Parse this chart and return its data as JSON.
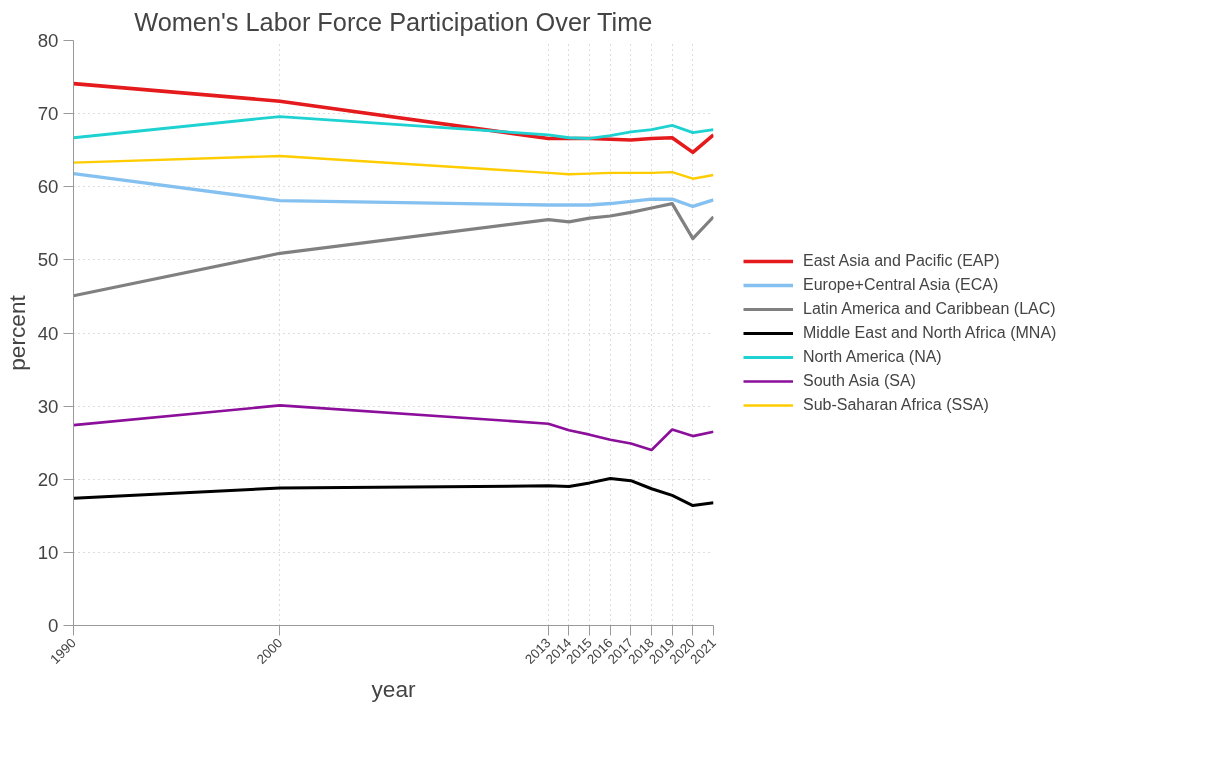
{
  "chart_data": {
    "type": "line",
    "title": "Women's Labor Force Participation Over Time",
    "xlabel": "year",
    "ylabel": "percent",
    "x": [
      1990,
      2000,
      2013,
      2014,
      2015,
      2016,
      2017,
      2018,
      2019,
      2020,
      2021
    ],
    "xlim": [
      1990,
      2021
    ],
    "xticks": [
      1990,
      2000,
      2013,
      2014,
      2015,
      2016,
      2017,
      2018,
      2019,
      2020,
      2021
    ],
    "ylim": [
      0,
      80
    ],
    "yticks": [
      0,
      10,
      20,
      30,
      40,
      50,
      60,
      70,
      80
    ],
    "grid": true,
    "legend": "right",
    "marker": "none",
    "line_style": "solid",
    "series": [
      {
        "name": "East Asia and Pacific (EAP)",
        "color": "#e41a1c",
        "values": [
          74.1,
          71.7,
          66.6,
          66.6,
          66.6,
          66.5,
          66.4,
          66.6,
          66.7,
          64.7,
          67.1
        ]
      },
      {
        "name": "Europe+Central Asia (ECA)",
        "color": "#85c1f0",
        "values": [
          61.8,
          58.1,
          57.5,
          57.5,
          57.5,
          57.7,
          58.0,
          58.3,
          58.3,
          57.3,
          58.2
        ]
      },
      {
        "name": "Latin America and Caribbean (LAC)",
        "color": "#808080",
        "values": [
          45.1,
          50.9,
          55.5,
          55.2,
          55.7,
          56.0,
          56.5,
          57.1,
          57.7,
          52.9,
          55.9
        ]
      },
      {
        "name": "Middle East and North Africa (MNA)",
        "color": "#000000",
        "values": [
          17.4,
          18.8,
          19.1,
          19.0,
          19.5,
          20.1,
          19.8,
          18.7,
          17.8,
          16.4,
          16.8
        ]
      },
      {
        "name": "North America (NA)",
        "color": "#1ed2d2",
        "values": [
          66.7,
          69.6,
          67.1,
          66.7,
          66.6,
          67.0,
          67.5,
          67.8,
          68.4,
          67.4,
          67.8
        ]
      },
      {
        "name": "South Asia (SA)",
        "color": "#8b0f9a",
        "values": [
          27.4,
          30.1,
          27.6,
          26.7,
          26.1,
          25.4,
          24.9,
          24.0,
          26.8,
          25.9,
          26.5
        ]
      },
      {
        "name": "Sub-Saharan Africa (SSA)",
        "color": "#ffcc00",
        "values": [
          63.3,
          64.2,
          61.9,
          61.7,
          61.8,
          61.9,
          61.9,
          61.9,
          62.0,
          61.1,
          61.6
        ]
      }
    ]
  }
}
